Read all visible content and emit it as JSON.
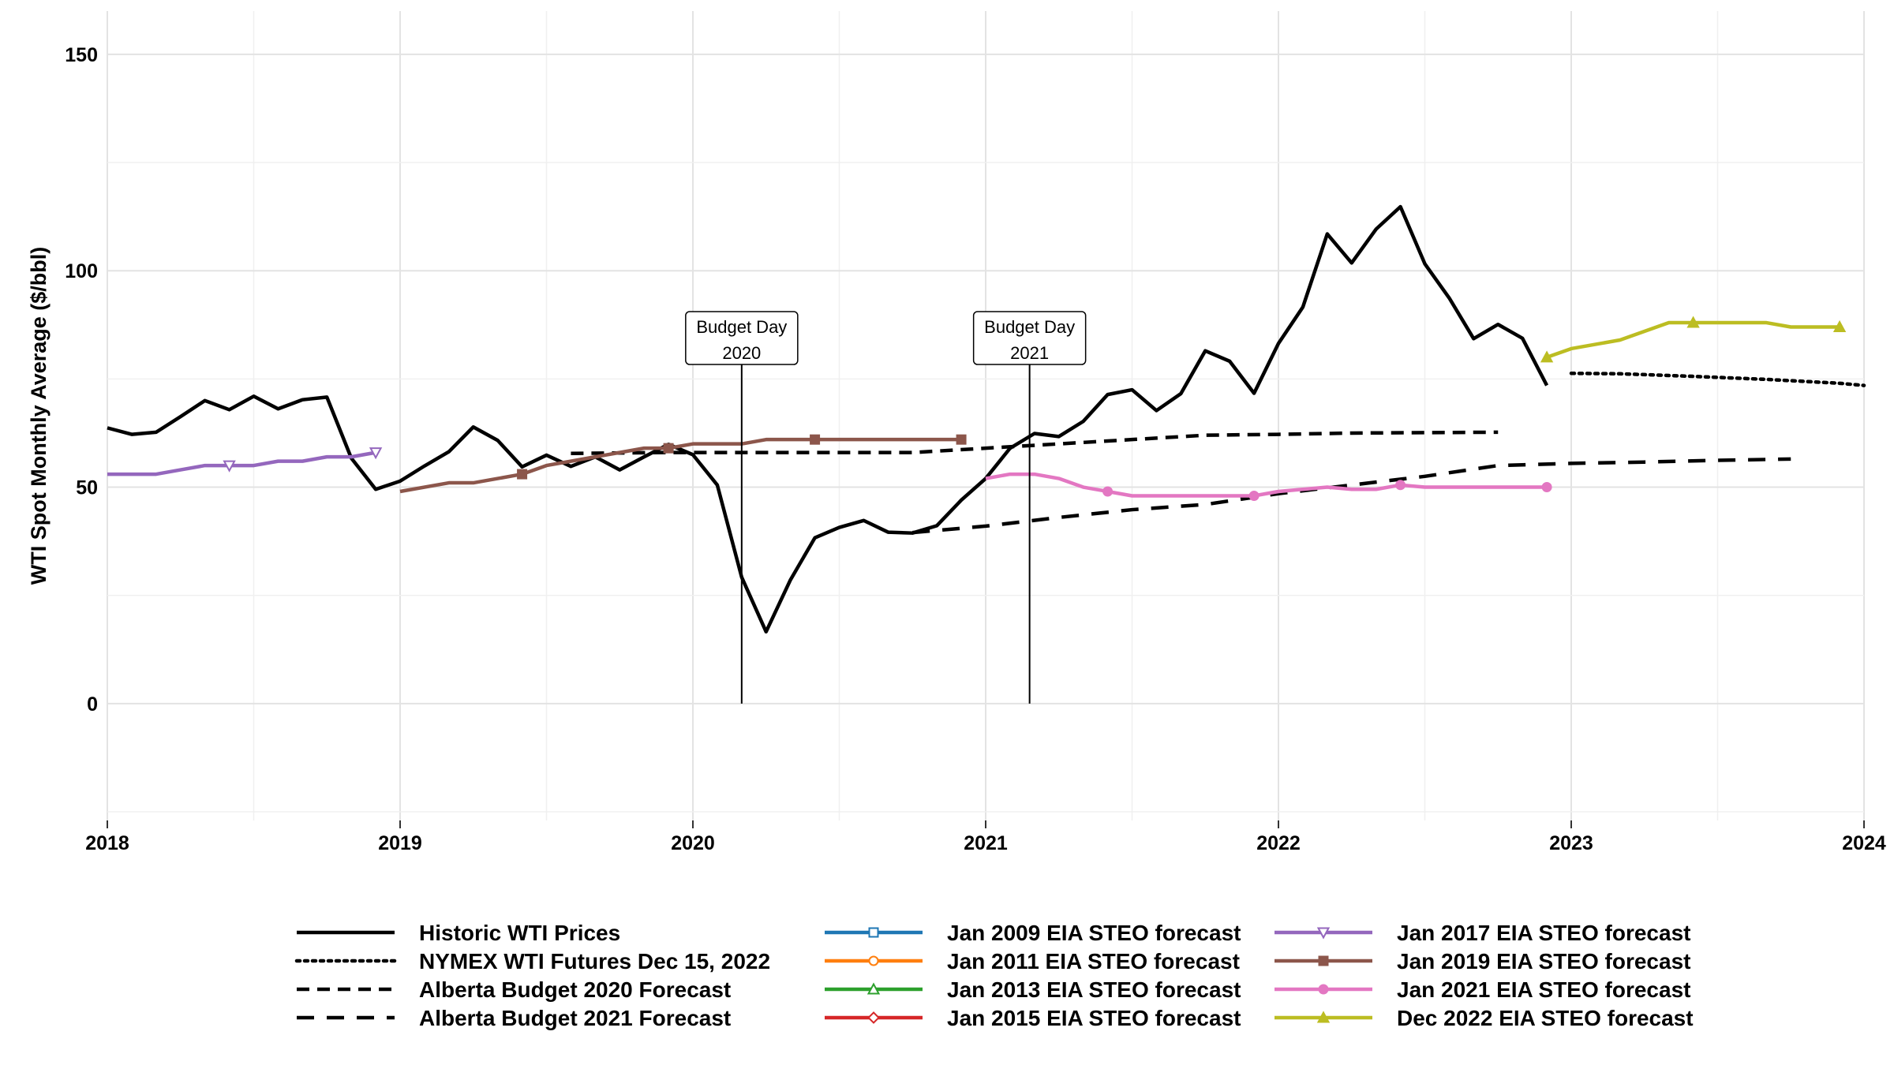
{
  "chart_data": {
    "type": "line",
    "title": "",
    "xlabel": "",
    "ylabel": "WTI Spot Monthly Average ($/bbl)",
    "xlim": [
      "2018-01-01",
      "2024-01-01"
    ],
    "ylim": [
      -27,
      160
    ],
    "x_ticks": [
      "2018",
      "2019",
      "2020",
      "2021",
      "2022",
      "2023",
      "2024"
    ],
    "y_ticks": [
      0,
      50,
      100,
      150
    ],
    "grid": true,
    "legend_position": "bottom",
    "annotations": [
      {
        "label_line1": "Budget Day",
        "label_line2": "2020",
        "x": "2020-03-01"
      },
      {
        "label_line1": "Budget Day",
        "label_line2": "2021",
        "x": "2021-02-25"
      }
    ],
    "legend": [
      [
        "Historic WTI Prices",
        "NYMEX WTI Futures Dec 15, 2022",
        "Alberta Budget 2020 Forecast",
        "Alberta Budget 2021 Forecast"
      ],
      [
        "Jan 2009 EIA STEO forecast",
        "Jan 2011 EIA STEO forecast",
        "Jan 2013 EIA STEO forecast",
        "Jan 2015 EIA STEO forecast"
      ],
      [
        "Jan 2017 EIA STEO forecast",
        "Jan 2019 EIA STEO forecast",
        "Jan 2021 EIA STEO forecast",
        "Dec 2022 EIA STEO forecast"
      ]
    ],
    "series": [
      {
        "name": "Historic WTI Prices",
        "color": "#000000",
        "style": "solid",
        "width": 4.5,
        "x": [
          "2018-01",
          "2018-02",
          "2018-03",
          "2018-04",
          "2018-05",
          "2018-06",
          "2018-07",
          "2018-08",
          "2018-09",
          "2018-10",
          "2018-11",
          "2018-12",
          "2019-01",
          "2019-02",
          "2019-03",
          "2019-04",
          "2019-05",
          "2019-06",
          "2019-07",
          "2019-08",
          "2019-09",
          "2019-10",
          "2019-11",
          "2019-12",
          "2020-01",
          "2020-02",
          "2020-03",
          "2020-04",
          "2020-05",
          "2020-06",
          "2020-07",
          "2020-08",
          "2020-09",
          "2020-10",
          "2020-11",
          "2020-12",
          "2021-01",
          "2021-02",
          "2021-03",
          "2021-04",
          "2021-05",
          "2021-06",
          "2021-07",
          "2021-08",
          "2021-09",
          "2021-10",
          "2021-11",
          "2021-12",
          "2022-01",
          "2022-02",
          "2022-03",
          "2022-04",
          "2022-05",
          "2022-06",
          "2022-07",
          "2022-08",
          "2022-09",
          "2022-10",
          "2022-11",
          "2022-12"
        ],
        "y": [
          63.7,
          62.2,
          62.7,
          66.3,
          70.0,
          67.9,
          71.0,
          68.1,
          70.2,
          70.8,
          56.7,
          49.5,
          51.4,
          54.9,
          58.2,
          63.9,
          60.8,
          54.7,
          57.4,
          54.8,
          57.0,
          54.0,
          57.0,
          59.9,
          57.5,
          50.5,
          29.2,
          16.6,
          28.6,
          38.3,
          40.7,
          42.3,
          39.6,
          39.4,
          41.1,
          47.0,
          52.0,
          59.0,
          62.4,
          61.7,
          65.2,
          71.4,
          72.5,
          67.7,
          71.6,
          81.5,
          79.1,
          71.7,
          83.2,
          91.6,
          108.5,
          101.8,
          109.6,
          114.8,
          101.6,
          93.7,
          84.3,
          87.6,
          84.4,
          73.5
        ]
      },
      {
        "name": "NYMEX WTI Futures Dec 15, 2022",
        "color": "#000000",
        "style": "dotted",
        "width": 4.5,
        "x": [
          "2023-01",
          "2023-03",
          "2023-06",
          "2023-09",
          "2023-12",
          "2024-01"
        ],
        "y": [
          76.3,
          76.2,
          75.6,
          74.9,
          74.0,
          73.5
        ]
      },
      {
        "name": "Alberta Budget 2020 Forecast",
        "color": "#000000",
        "style": "dashed",
        "width": 4.5,
        "x": [
          "2019-08",
          "2019-12",
          "2020-03",
          "2020-09",
          "2020-10",
          "2021-01",
          "2021-04",
          "2021-07",
          "2021-10",
          "2022-01",
          "2022-04",
          "2022-07",
          "2022-10"
        ],
        "y": [
          57.8,
          58.0,
          58.0,
          58.0,
          58.0,
          59.0,
          60.0,
          61.0,
          62.0,
          62.2,
          62.5,
          62.6,
          62.7
        ]
      },
      {
        "name": "Alberta Budget 2021 Forecast",
        "color": "#000000",
        "style": "longdash",
        "width": 4.5,
        "x": [
          "2020-10",
          "2021-01",
          "2021-04",
          "2021-07",
          "2021-10",
          "2022-01",
          "2022-04",
          "2022-07",
          "2022-10",
          "2023-01",
          "2023-04",
          "2023-07",
          "2023-10"
        ],
        "y": [
          39.5,
          41.0,
          43.0,
          44.8,
          46.0,
          48.5,
          50.5,
          52.5,
          55.0,
          55.5,
          55.8,
          56.2,
          56.5
        ]
      },
      {
        "name": "Jan 2009 EIA STEO forecast",
        "color": "#1f77b4",
        "marker": "square-open",
        "x": [],
        "y": []
      },
      {
        "name": "Jan 2011 EIA STEO forecast",
        "color": "#ff7f0e",
        "marker": "circle-open",
        "x": [],
        "y": []
      },
      {
        "name": "Jan 2013 EIA STEO forecast",
        "color": "#2ca02c",
        "marker": "triangle-open",
        "x": [],
        "y": []
      },
      {
        "name": "Jan 2015 EIA STEO forecast",
        "color": "#d62728",
        "marker": "diamond-open",
        "x": [],
        "y": []
      },
      {
        "name": "Jan 2017 EIA STEO forecast",
        "color": "#9467bd",
        "marker": "triangle-down-open",
        "style": "solid",
        "width": 4.5,
        "x": [
          "2018-01",
          "2018-03",
          "2018-04",
          "2018-05",
          "2018-06",
          "2018-07",
          "2018-08",
          "2018-09",
          "2018-10",
          "2018-11",
          "2018-12"
        ],
        "y": [
          53.0,
          53.0,
          54.0,
          55.0,
          55.0,
          55.0,
          56.0,
          56.0,
          57.0,
          57.0,
          58.0
        ],
        "marker_x": [
          "2018-06",
          "2018-12"
        ]
      },
      {
        "name": "Jan 2019 EIA STEO forecast",
        "color": "#8c564b",
        "marker": "square",
        "style": "solid",
        "width": 4.5,
        "x": [
          "2019-01",
          "2019-03",
          "2019-04",
          "2019-05",
          "2019-06",
          "2019-07",
          "2019-08",
          "2019-09",
          "2019-10",
          "2019-11",
          "2019-12",
          "2020-01",
          "2020-03",
          "2020-04",
          "2020-06",
          "2020-12"
        ],
        "y": [
          49.0,
          51.0,
          51.0,
          52.0,
          53.0,
          55.0,
          56.0,
          57.0,
          58.0,
          59.0,
          59.0,
          60.0,
          60.0,
          61.0,
          61.0,
          61.0
        ],
        "marker_x": [
          "2019-06",
          "2019-12",
          "2020-06",
          "2020-12"
        ]
      },
      {
        "name": "Jan 2021 EIA STEO forecast",
        "color": "#e377c2",
        "marker": "circle",
        "style": "solid",
        "width": 4.5,
        "x": [
          "2021-01",
          "2021-02",
          "2021-03",
          "2021-04",
          "2021-05",
          "2021-06",
          "2021-07",
          "2021-09",
          "2021-12",
          "2022-01",
          "2022-03",
          "2022-04",
          "2022-05",
          "2022-06",
          "2022-07",
          "2022-12"
        ],
        "y": [
          52.0,
          53.0,
          53.0,
          52.0,
          50.0,
          49.0,
          48.0,
          48.0,
          48.0,
          49.0,
          50.0,
          49.5,
          49.5,
          50.5,
          50.0,
          50.0
        ],
        "marker_x": [
          "2021-06",
          "2021-12",
          "2022-06",
          "2022-12"
        ]
      },
      {
        "name": "Dec 2022 EIA STEO forecast",
        "color": "#bcbd22",
        "marker": "triangle",
        "style": "solid",
        "width": 4.5,
        "x": [
          "2022-12",
          "2023-01",
          "2023-03",
          "2023-04",
          "2023-05",
          "2023-06",
          "2023-09",
          "2023-10",
          "2023-12"
        ],
        "y": [
          80.0,
          82.0,
          84.0,
          86.0,
          88.0,
          88.0,
          88.0,
          87.0,
          87.0
        ],
        "marker_x": [
          "2022-12",
          "2023-06",
          "2023-12"
        ]
      }
    ]
  }
}
